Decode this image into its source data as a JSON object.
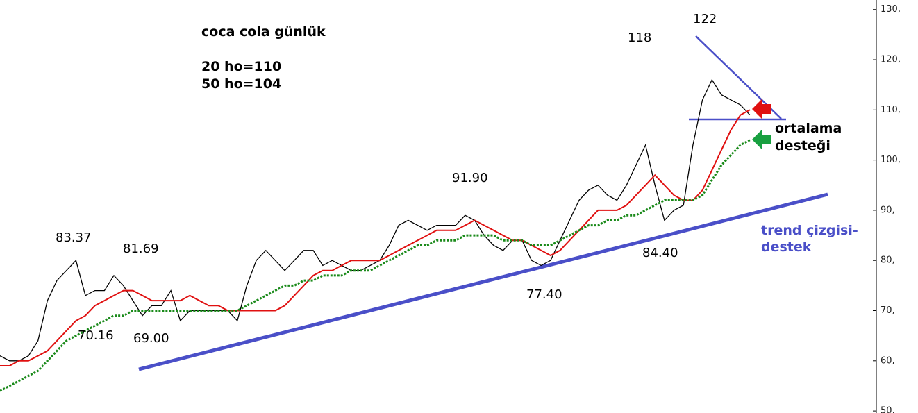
{
  "chart_data": {
    "type": "line",
    "title": "coca cola günlük",
    "subtitle_lines": [
      "20 ho=110",
      "50 ho=104"
    ],
    "ylim": [
      49.6,
      131.9
    ],
    "yticks": [
      {
        "value": 130,
        "label": "130,"
      },
      {
        "value": 120,
        "label": "120,"
      },
      {
        "value": 110,
        "label": "110,"
      },
      {
        "value": 100,
        "label": "100,"
      },
      {
        "value": 90,
        "label": "90,"
      },
      {
        "value": 80,
        "label": "80,"
      },
      {
        "value": 70,
        "label": "70,"
      },
      {
        "value": 60,
        "label": "60,"
      },
      {
        "value": 50,
        "label": "50,"
      }
    ],
    "series": [
      {
        "color": "#000000",
        "values": [
          61,
          60,
          60,
          61,
          64,
          72,
          76,
          78,
          80,
          73,
          74,
          74,
          77,
          75,
          72,
          69,
          71,
          71,
          74,
          68,
          70,
          70,
          70,
          70,
          70,
          68,
          75,
          80,
          82,
          80,
          78,
          80,
          82,
          82,
          79,
          80,
          79,
          78,
          78,
          79,
          80,
          83,
          87,
          88,
          87,
          86,
          87,
          87,
          87,
          89,
          88,
          85,
          83,
          82,
          84,
          84,
          80,
          79,
          80,
          84,
          88,
          92,
          94,
          95,
          93,
          92,
          95,
          99,
          103,
          95,
          88,
          90,
          91,
          103,
          112,
          116,
          113,
          112,
          111,
          109
        ]
      },
      {
        "color": "#e01010",
        "values": [
          59,
          59,
          60,
          60,
          61,
          62,
          64,
          66,
          68,
          69,
          71,
          72,
          73,
          74,
          74,
          73,
          72,
          72,
          72,
          72,
          73,
          72,
          71,
          71,
          70,
          70,
          70,
          70,
          70,
          70,
          71,
          73,
          75,
          77,
          78,
          78,
          79,
          80,
          80,
          80,
          80,
          81,
          82,
          83,
          84,
          85,
          86,
          86,
          86,
          87,
          88,
          87,
          86,
          85,
          84,
          84,
          83,
          82,
          81,
          82,
          84,
          86,
          88,
          90,
          90,
          90,
          91,
          93,
          95,
          97,
          95,
          93,
          92,
          92,
          94,
          98,
          102,
          106,
          109,
          110
        ]
      },
      {
        "color": "#1a8a1a",
        "values": [
          54,
          55,
          56,
          57,
          58,
          60,
          62,
          64,
          65,
          66,
          67,
          68,
          69,
          69,
          70,
          70,
          70,
          70,
          70,
          70,
          70,
          70,
          70,
          70,
          70,
          70,
          71,
          72,
          73,
          74,
          75,
          75,
          76,
          76,
          77,
          77,
          77,
          78,
          78,
          78,
          79,
          80,
          81,
          82,
          83,
          83,
          84,
          84,
          84,
          85,
          85,
          85,
          85,
          84,
          84,
          84,
          83,
          83,
          83,
          84,
          85,
          86,
          87,
          87,
          88,
          88,
          89,
          89,
          90,
          91,
          92,
          92,
          92,
          92,
          93,
          96,
          99,
          101,
          103,
          104
        ]
      }
    ],
    "annotations": [
      "83.37",
      "81.69",
      "70.16",
      "69.00",
      "91.90",
      "77.40",
      "118",
      "122",
      "84.40"
    ],
    "notes": [
      "ortalama",
      "desteği",
      "trend çizgisi-",
      "destek"
    ]
  }
}
